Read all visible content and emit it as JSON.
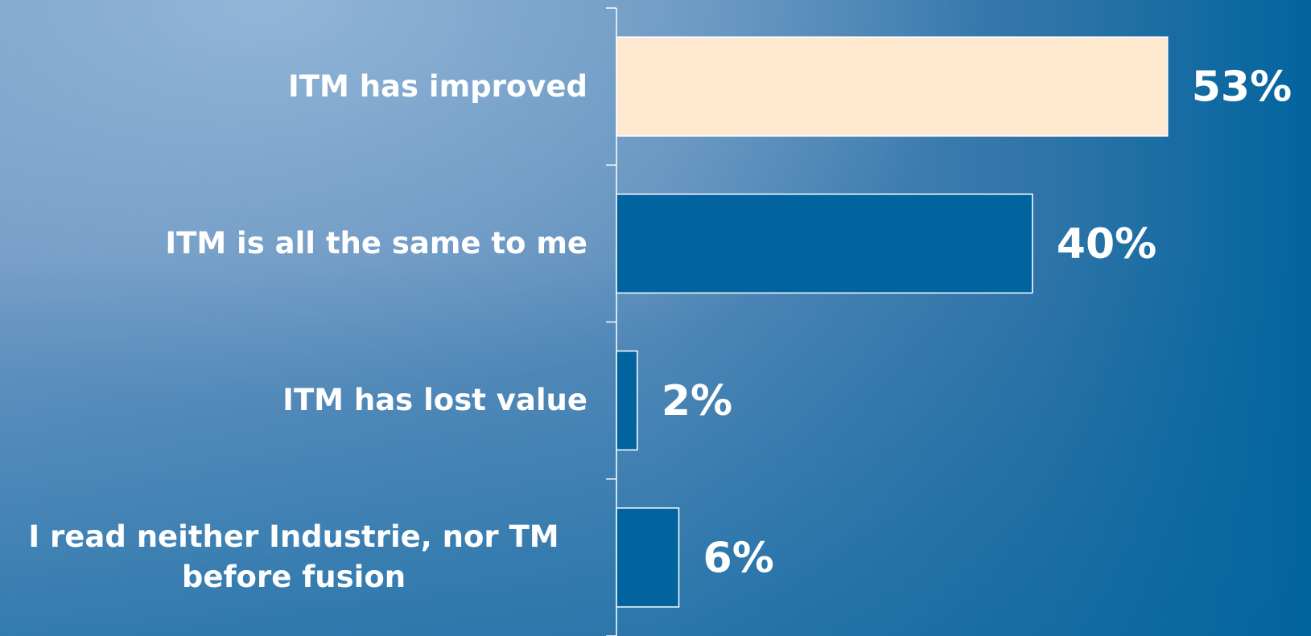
{
  "chart_data": {
    "type": "bar",
    "orientation": "horizontal",
    "categories": [
      "ITM has improved",
      "ITM is all the same to me",
      "ITM has lost value",
      "I read neither Industrie, nor TM before fusion"
    ],
    "values": [
      53,
      40,
      2,
      6
    ],
    "value_labels": [
      "53%",
      "40%",
      "2%",
      "6%"
    ],
    "colors": [
      "#ffe8d0",
      "#02649e",
      "#02649e",
      "#02649e"
    ]
  }
}
